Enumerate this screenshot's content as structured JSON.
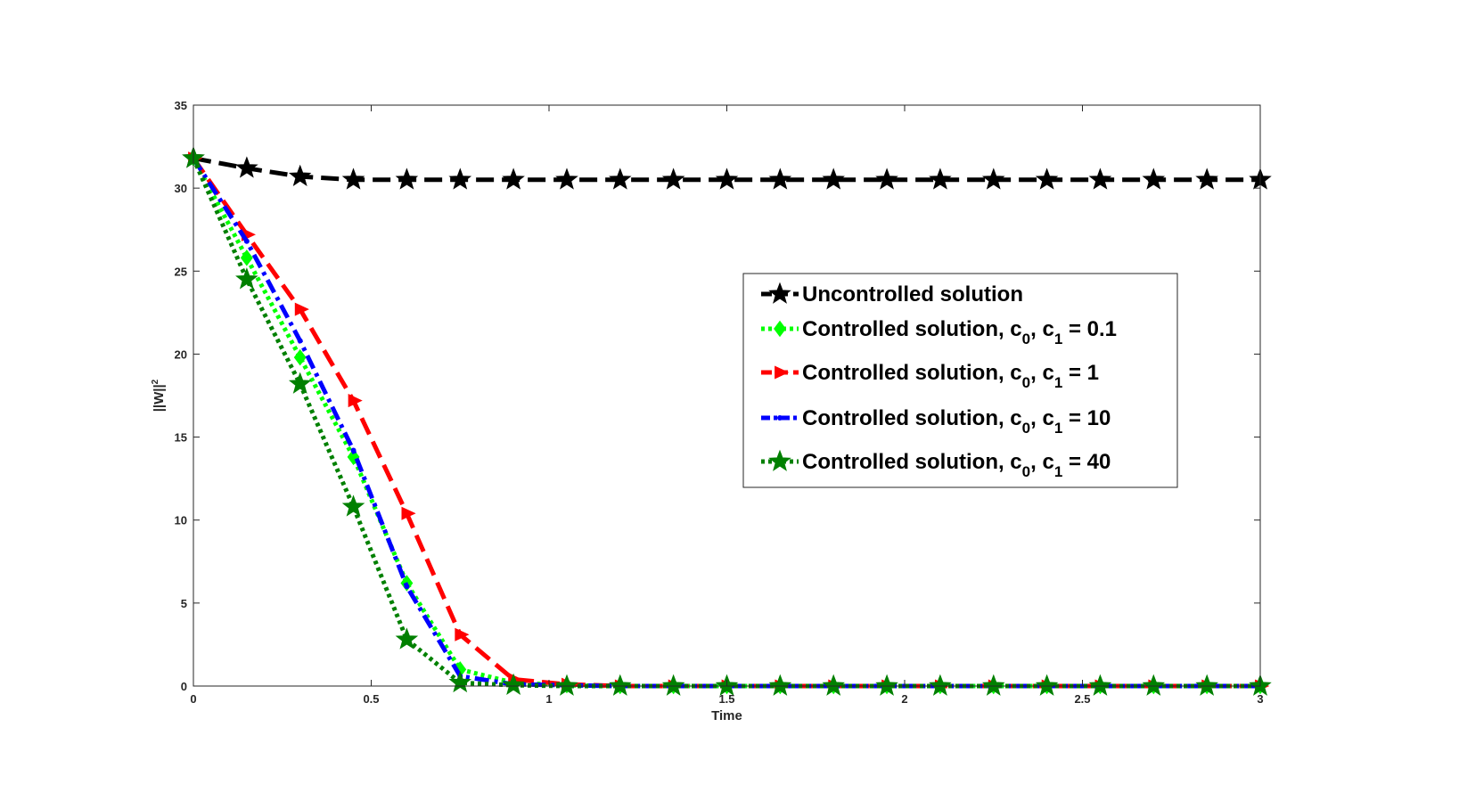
{
  "chart_data": {
    "type": "line",
    "xlabel": "Time",
    "ylabel": "||W||",
    "ylabel_sup": "2",
    "xlim": [
      0,
      3
    ],
    "ylim": [
      0,
      35
    ],
    "xticks": [
      0,
      0.5,
      1,
      1.5,
      2,
      2.5,
      3
    ],
    "xtick_labels": [
      "0",
      "0.5",
      "1",
      "1.5",
      "2",
      "2.5",
      "3"
    ],
    "yticks": [
      0,
      5,
      10,
      15,
      20,
      25,
      30,
      35
    ],
    "ytick_labels": [
      "0",
      "5",
      "10",
      "15",
      "20",
      "25",
      "30",
      "35"
    ],
    "grid": false,
    "legend_position": "center-right",
    "series": [
      {
        "name": "Uncontrolled solution",
        "legend": {
          "main": "Uncontrolled solution",
          "sub0": "",
          "mid": "",
          "sub1": "",
          "tail": ""
        },
        "color": "#000000",
        "marker": "star",
        "line": "dashed",
        "x": [
          0,
          0.15,
          0.3,
          0.45,
          0.6,
          0.75,
          0.9,
          1.05,
          1.2,
          1.35,
          1.5,
          1.65,
          1.8,
          1.95,
          2.1,
          2.25,
          2.4,
          2.55,
          2.7,
          2.85,
          3.0
        ],
        "y": [
          31.8,
          31.2,
          30.7,
          30.5,
          30.5,
          30.5,
          30.5,
          30.5,
          30.5,
          30.5,
          30.5,
          30.5,
          30.5,
          30.5,
          30.5,
          30.5,
          30.5,
          30.5,
          30.5,
          30.5,
          30.5
        ]
      },
      {
        "name": "Controlled solution, c0, c1 = 0.1",
        "legend": {
          "main": "Controlled solution, c",
          "sub0": "0",
          "mid": ", c",
          "sub1": "1",
          "tail": " = 0.1"
        },
        "color": "#00ff00",
        "marker": "diamond",
        "line": "dotted",
        "x": [
          0,
          0.15,
          0.3,
          0.45,
          0.6,
          0.75,
          0.9,
          1.05,
          1.2,
          1.35,
          1.5,
          1.65,
          1.8,
          1.95,
          2.1,
          2.25,
          2.4,
          2.55,
          2.7,
          2.85,
          3.0
        ],
        "y": [
          31.8,
          25.8,
          19.8,
          13.8,
          6.2,
          1.0,
          0.2,
          0.05,
          0,
          0,
          0,
          0,
          0,
          0,
          0,
          0,
          0,
          0,
          0,
          0,
          0
        ]
      },
      {
        "name": "Controlled solution, c0, c1 = 1",
        "legend": {
          "main": "Controlled solution, c",
          "sub0": "0",
          "mid": ", c",
          "sub1": "1",
          "tail": " = 1"
        },
        "color": "#ff0000",
        "marker": "triangle-right",
        "line": "dashed",
        "x": [
          0,
          0.15,
          0.3,
          0.45,
          0.6,
          0.75,
          0.9,
          1.05,
          1.2,
          1.35,
          1.5,
          1.65,
          1.8,
          1.95,
          2.1,
          2.25,
          2.4,
          2.55,
          2.7,
          2.85,
          3.0
        ],
        "y": [
          31.8,
          27.2,
          22.7,
          17.2,
          10.4,
          3.1,
          0.4,
          0.1,
          0,
          0,
          0,
          0,
          0,
          0,
          0,
          0,
          0,
          0,
          0,
          0,
          0
        ]
      },
      {
        "name": "Controlled solution, c0, c1 = 10",
        "legend": {
          "main": "Controlled solution, c",
          "sub0": "0",
          "mid": ", c",
          "sub1": "1",
          "tail": " = 10"
        },
        "color": "#0000ff",
        "marker": "point",
        "line": "dashdot",
        "x": [
          0,
          0.15,
          0.3,
          0.45,
          0.6,
          0.75,
          0.9,
          1.05,
          1.2,
          1.35,
          1.5,
          1.65,
          1.8,
          1.95,
          2.1,
          2.25,
          2.4,
          2.55,
          2.7,
          2.85,
          3.0
        ],
        "y": [
          31.8,
          26.8,
          20.8,
          14.2,
          6.0,
          0.6,
          0.1,
          0.05,
          0,
          0,
          0,
          0,
          0,
          0,
          0,
          0,
          0,
          0,
          0,
          0,
          0
        ]
      },
      {
        "name": "Controlled solution, c0, c1 = 40",
        "legend": {
          "main": "Controlled solution, c",
          "sub0": "0",
          "mid": ", c",
          "sub1": "1",
          "tail": " = 40"
        },
        "color": "#008000",
        "marker": "star",
        "line": "dotted",
        "x": [
          0,
          0.15,
          0.3,
          0.45,
          0.6,
          0.75,
          0.9,
          1.05,
          1.2,
          1.35,
          1.5,
          1.65,
          1.8,
          1.95,
          2.1,
          2.25,
          2.4,
          2.55,
          2.7,
          2.85,
          3.0
        ],
        "y": [
          31.8,
          24.5,
          18.2,
          10.8,
          2.8,
          0.2,
          0.05,
          0,
          0,
          0,
          0,
          0,
          0,
          0,
          0,
          0,
          0,
          0,
          0,
          0,
          0
        ]
      }
    ]
  }
}
